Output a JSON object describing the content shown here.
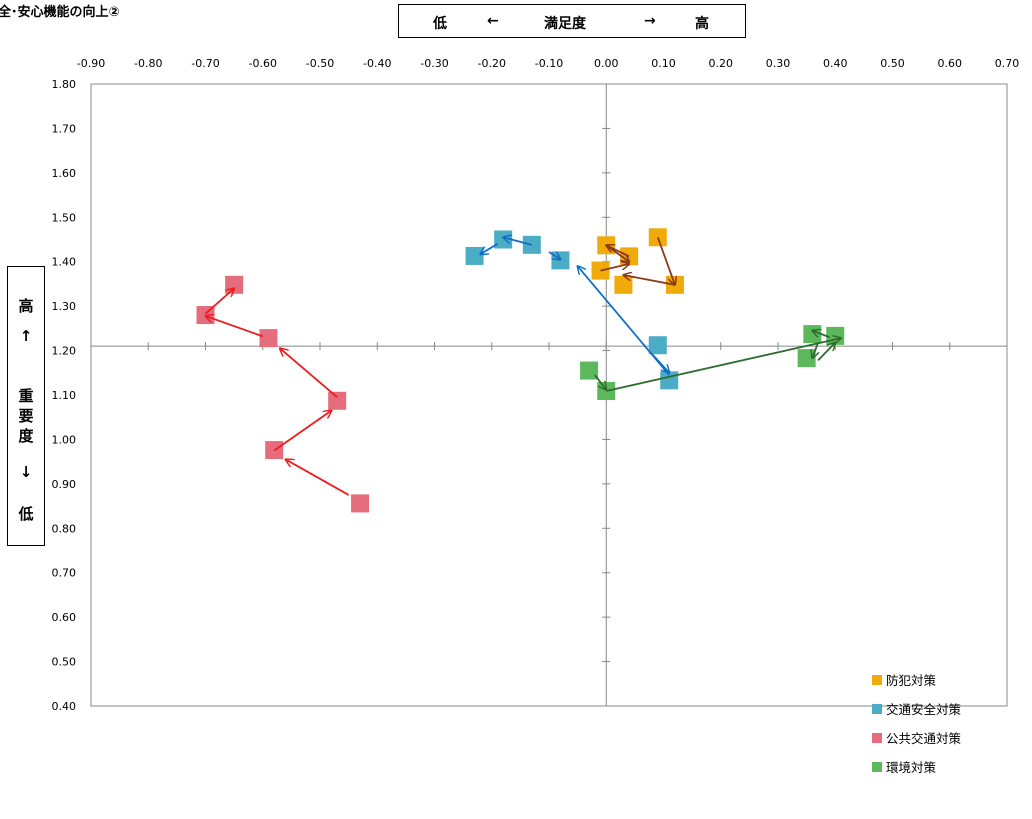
{
  "page_title": "全･安心機能の向上②",
  "satisfaction_axis": {
    "low": "低",
    "left_arrow": "←",
    "label": "満足度",
    "right_arrow": "→",
    "high": "高"
  },
  "importance_axis": {
    "high": "高",
    "up_arrow": "↑",
    "label_chars": [
      "重",
      "要",
      "度"
    ],
    "down_arrow": "↓",
    "low": "低"
  },
  "chart_data": {
    "type": "scatter",
    "x_ticks": [
      "-0.90",
      "-0.80",
      "-0.70",
      "-0.60",
      "-0.50",
      "-0.40",
      "-0.30",
      "-0.20",
      "-0.10",
      "0.00",
      "0.10",
      "0.20",
      "0.30",
      "0.40",
      "0.50",
      "0.60",
      "0.70"
    ],
    "y_ticks": [
      "1.80",
      "1.70",
      "1.60",
      "1.50",
      "1.40",
      "1.30",
      "1.20",
      "1.10",
      "1.00",
      "0.90",
      "0.80",
      "0.70",
      "0.60",
      "0.50",
      "0.40"
    ],
    "xlim": [
      -0.9,
      0.7
    ],
    "ylim": [
      0.4,
      1.8
    ],
    "cross": {
      "x": 0.0,
      "y": 1.21
    },
    "series": [
      {
        "name": "防犯対策",
        "color": "#f0aa0a",
        "arrow_color": "#8b3a1a",
        "points": [
          [
            0.09,
            1.455
          ],
          [
            0.12,
            1.348
          ],
          [
            -0.01,
            1.38
          ],
          [
            0.04,
            1.412
          ],
          [
            0.0,
            1.437
          ],
          [
            0.03,
            1.348
          ]
        ],
        "arrows": [
          [
            0.09,
            1.455,
            0.12,
            1.348
          ],
          [
            0.12,
            1.348,
            0.03,
            1.37
          ],
          [
            -0.01,
            1.38,
            0.04,
            1.395
          ],
          [
            0.04,
            1.412,
            0.0,
            1.437
          ],
          [
            0.0,
            1.437,
            0.04,
            1.4
          ]
        ]
      },
      {
        "name": "交通安全対策",
        "color": "#4bacc6",
        "arrow_color": "#0f6fc6",
        "points": [
          [
            -0.23,
            1.413
          ],
          [
            -0.18,
            1.45
          ],
          [
            -0.13,
            1.438
          ],
          [
            -0.08,
            1.403
          ],
          [
            0.09,
            1.212
          ],
          [
            0.11,
            1.133
          ]
        ],
        "arrows": [
          [
            -0.13,
            1.438,
            -0.18,
            1.455
          ],
          [
            -0.19,
            1.44,
            -0.22,
            1.417
          ],
          [
            -0.1,
            1.422,
            -0.08,
            1.405
          ],
          [
            0.11,
            1.145,
            -0.05,
            1.39
          ],
          [
            0.08,
            1.192,
            0.11,
            1.15
          ]
        ]
      },
      {
        "name": "公共交通対策",
        "color": "#e46c7c",
        "arrow_color": "#ee1c1c",
        "points": [
          [
            -0.65,
            1.348
          ],
          [
            -0.7,
            1.28
          ],
          [
            -0.59,
            1.228
          ],
          [
            -0.47,
            1.087
          ],
          [
            -0.58,
            0.976
          ],
          [
            -0.43,
            0.856
          ]
        ],
        "arrows": [
          [
            -0.7,
            1.283,
            -0.65,
            1.34
          ],
          [
            -0.6,
            1.232,
            -0.7,
            1.278
          ],
          [
            -0.47,
            1.095,
            -0.57,
            1.205
          ],
          [
            -0.58,
            0.975,
            -0.48,
            1.065
          ],
          [
            -0.45,
            0.875,
            -0.56,
            0.955
          ]
        ]
      },
      {
        "name": "環境対策",
        "color": "#5cb85c",
        "arrow_color": "#2e6b2e",
        "points": [
          [
            -0.03,
            1.155
          ],
          [
            0.0,
            1.109
          ],
          [
            0.4,
            1.233
          ],
          [
            0.35,
            1.183
          ],
          [
            0.36,
            1.237
          ]
        ],
        "arrows": [
          [
            -0.02,
            1.145,
            0.0,
            1.112
          ],
          [
            0.0,
            1.109,
            0.41,
            1.228
          ],
          [
            0.39,
            1.23,
            0.36,
            1.245
          ],
          [
            0.37,
            1.218,
            0.36,
            1.183
          ],
          [
            0.37,
            1.178,
            0.4,
            1.218
          ]
        ]
      }
    ]
  }
}
